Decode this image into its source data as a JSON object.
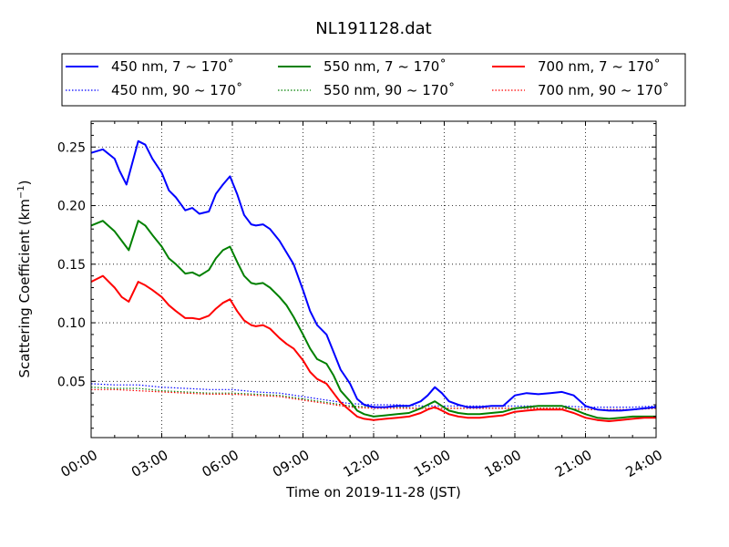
{
  "chart_data": {
    "type": "line",
    "title": "NL191128.dat",
    "xlabel": "Time on 2019-11-28 (JST)",
    "ylabel_main": "Scattering Coefficient (km",
    "ylabel_sup": "−1",
    "ylabel_close": ")",
    "xlim": [
      0,
      24
    ],
    "ylim": [
      0.002,
      0.272
    ],
    "x_ticks": [
      0,
      3,
      6,
      9,
      12,
      15,
      18,
      21,
      24
    ],
    "x_tick_labels": [
      "00:00",
      "03:00",
      "06:00",
      "09:00",
      "12:00",
      "15:00",
      "18:00",
      "21:00",
      "24:00"
    ],
    "y_ticks": [
      0.05,
      0.1,
      0.15,
      0.2,
      0.25
    ],
    "y_tick_labels": [
      "0.05",
      "0.10",
      "0.15",
      "0.20",
      "0.25"
    ],
    "grid": true,
    "legend_placement": "top, above plot, 3 columns",
    "series": [
      {
        "name": "450 nm, 7 ~ 170˚",
        "color": "#0000ff",
        "style": "solid",
        "x": [
          0,
          0.5,
          1,
          1.2,
          1.5,
          2,
          2.3,
          2.6,
          3,
          3.3,
          3.6,
          4,
          4.3,
          4.6,
          5,
          5.3,
          5.6,
          5.9,
          6.2,
          6.5,
          6.8,
          7,
          7.3,
          7.6,
          8,
          8.3,
          8.6,
          9,
          9.3,
          9.6,
          10,
          10.3,
          10.6,
          11,
          11.3,
          11.6,
          12,
          12.5,
          13,
          13.5,
          14,
          14.3,
          14.6,
          14.9,
          15.2,
          15.6,
          16,
          16.5,
          17,
          17.5,
          18,
          18.5,
          19,
          19.5,
          20,
          20.5,
          21,
          21.5,
          22,
          22.5,
          23,
          23.5,
          24
        ],
        "y": [
          0.245,
          0.248,
          0.24,
          0.23,
          0.218,
          0.255,
          0.252,
          0.24,
          0.228,
          0.213,
          0.207,
          0.196,
          0.198,
          0.193,
          0.195,
          0.21,
          0.218,
          0.225,
          0.21,
          0.192,
          0.184,
          0.183,
          0.184,
          0.18,
          0.17,
          0.16,
          0.15,
          0.128,
          0.11,
          0.098,
          0.09,
          0.075,
          0.06,
          0.048,
          0.035,
          0.03,
          0.028,
          0.028,
          0.029,
          0.029,
          0.033,
          0.038,
          0.045,
          0.04,
          0.033,
          0.03,
          0.028,
          0.028,
          0.029,
          0.029,
          0.038,
          0.04,
          0.039,
          0.04,
          0.041,
          0.038,
          0.029,
          0.026,
          0.025,
          0.025,
          0.026,
          0.027,
          0.028
        ]
      },
      {
        "name": "550 nm, 7 ~ 170˚",
        "color": "#008000",
        "style": "solid",
        "x": [
          0,
          0.5,
          1,
          1.3,
          1.6,
          2,
          2.3,
          2.6,
          3,
          3.3,
          3.6,
          4,
          4.3,
          4.6,
          5,
          5.3,
          5.6,
          5.9,
          6.2,
          6.5,
          6.8,
          7,
          7.3,
          7.6,
          8,
          8.3,
          8.6,
          9,
          9.3,
          9.6,
          10,
          10.3,
          10.6,
          11,
          11.3,
          11.6,
          12,
          12.5,
          13,
          13.5,
          14,
          14.3,
          14.6,
          14.9,
          15.2,
          15.6,
          16,
          16.5,
          17,
          17.5,
          18,
          18.5,
          19,
          19.5,
          20,
          20.5,
          21,
          21.5,
          22,
          22.5,
          23,
          23.5,
          24
        ],
        "y": [
          0.183,
          0.187,
          0.178,
          0.17,
          0.162,
          0.187,
          0.183,
          0.175,
          0.165,
          0.155,
          0.15,
          0.142,
          0.143,
          0.14,
          0.145,
          0.155,
          0.162,
          0.165,
          0.152,
          0.14,
          0.134,
          0.133,
          0.134,
          0.13,
          0.122,
          0.115,
          0.105,
          0.09,
          0.078,
          0.069,
          0.065,
          0.055,
          0.042,
          0.033,
          0.025,
          0.022,
          0.02,
          0.021,
          0.022,
          0.023,
          0.027,
          0.03,
          0.033,
          0.029,
          0.025,
          0.023,
          0.022,
          0.022,
          0.023,
          0.024,
          0.027,
          0.028,
          0.029,
          0.029,
          0.029,
          0.026,
          0.022,
          0.019,
          0.018,
          0.019,
          0.02,
          0.02,
          0.02
        ]
      },
      {
        "name": "700 nm, 7 ~ 170˚",
        "color": "#ff0000",
        "style": "solid",
        "x": [
          0,
          0.5,
          1,
          1.3,
          1.6,
          2,
          2.3,
          2.6,
          3,
          3.3,
          3.6,
          4,
          4.3,
          4.6,
          5,
          5.3,
          5.6,
          5.9,
          6.2,
          6.5,
          6.8,
          7,
          7.3,
          7.6,
          8,
          8.3,
          8.6,
          9,
          9.3,
          9.6,
          10,
          10.3,
          10.6,
          11,
          11.3,
          11.6,
          12,
          12.5,
          13,
          13.5,
          14,
          14.3,
          14.6,
          14.9,
          15.2,
          15.6,
          16,
          16.5,
          17,
          17.5,
          18,
          18.5,
          19,
          19.5,
          20,
          20.5,
          21,
          21.5,
          22,
          22.5,
          23,
          23.5,
          24
        ],
        "y": [
          0.135,
          0.14,
          0.13,
          0.122,
          0.118,
          0.135,
          0.132,
          0.128,
          0.122,
          0.115,
          0.11,
          0.104,
          0.104,
          0.103,
          0.106,
          0.112,
          0.117,
          0.12,
          0.11,
          0.102,
          0.098,
          0.097,
          0.098,
          0.095,
          0.087,
          0.082,
          0.078,
          0.068,
          0.058,
          0.052,
          0.048,
          0.04,
          0.032,
          0.025,
          0.02,
          0.018,
          0.017,
          0.018,
          0.019,
          0.02,
          0.023,
          0.026,
          0.028,
          0.025,
          0.022,
          0.02,
          0.019,
          0.019,
          0.02,
          0.021,
          0.024,
          0.025,
          0.026,
          0.026,
          0.026,
          0.023,
          0.019,
          0.017,
          0.016,
          0.017,
          0.018,
          0.019,
          0.019
        ]
      },
      {
        "name": "450 nm, 90 ~ 170˚",
        "color": "#0000ff",
        "style": "dotted",
        "x": [
          0,
          1,
          2,
          3,
          4,
          5,
          6,
          7,
          8,
          9,
          10,
          11,
          12,
          13,
          14,
          15,
          16,
          17,
          18,
          19,
          20,
          21,
          22,
          23,
          24
        ],
        "y": [
          0.048,
          0.047,
          0.047,
          0.045,
          0.044,
          0.043,
          0.043,
          0.041,
          0.04,
          0.037,
          0.034,
          0.031,
          0.03,
          0.03,
          0.029,
          0.029,
          0.029,
          0.029,
          0.029,
          0.029,
          0.029,
          0.028,
          0.028,
          0.028,
          0.029
        ]
      },
      {
        "name": "550 nm, 90 ~ 170˚",
        "color": "#008000",
        "style": "dotted",
        "x": [
          0,
          1,
          2,
          3,
          4,
          5,
          6,
          7,
          8,
          9,
          10,
          11,
          12,
          13,
          14,
          15,
          16,
          17,
          18,
          19,
          20,
          21,
          22,
          23,
          24
        ],
        "y": [
          0.045,
          0.044,
          0.044,
          0.042,
          0.041,
          0.04,
          0.04,
          0.039,
          0.038,
          0.035,
          0.032,
          0.029,
          0.028,
          0.028,
          0.027,
          0.027,
          0.027,
          0.027,
          0.027,
          0.027,
          0.027,
          0.026,
          0.026,
          0.026,
          0.027
        ]
      },
      {
        "name": "700 nm, 90 ~ 170˚",
        "color": "#ff0000",
        "style": "dotted",
        "x": [
          0,
          1,
          2,
          3,
          4,
          5,
          6,
          7,
          8,
          9,
          10,
          11,
          12,
          13,
          14,
          15,
          16,
          17,
          18,
          19,
          20,
          21,
          22,
          23,
          24
        ],
        "y": [
          0.043,
          0.043,
          0.042,
          0.041,
          0.04,
          0.039,
          0.039,
          0.038,
          0.037,
          0.034,
          0.031,
          0.028,
          0.027,
          0.027,
          0.027,
          0.027,
          0.027,
          0.027,
          0.027,
          0.027,
          0.027,
          0.026,
          0.026,
          0.026,
          0.027
        ]
      }
    ]
  }
}
